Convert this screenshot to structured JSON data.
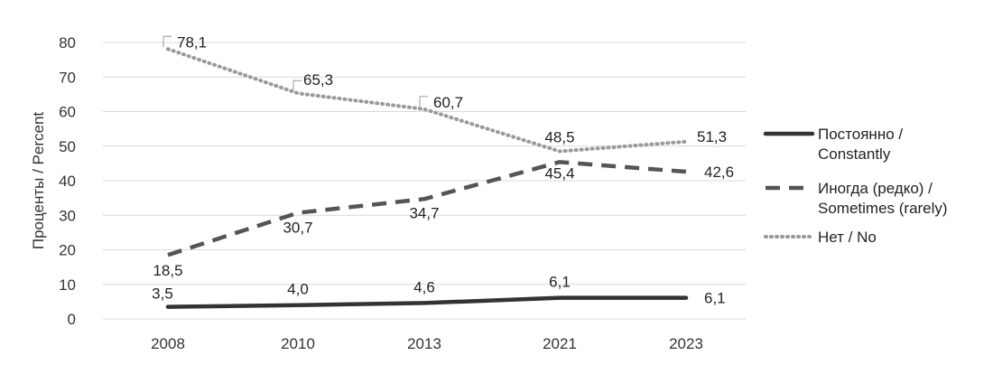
{
  "chart_data": {
    "type": "line",
    "ylabel": "Проценты / Percent",
    "ylim": [
      0,
      80
    ],
    "yticks": [
      "0",
      "10",
      "20",
      "30",
      "40",
      "50",
      "60",
      "70",
      "80"
    ],
    "categories": [
      "2008",
      "2010",
      "2013",
      "2021",
      "2023"
    ],
    "grid": true,
    "legend_position": "right",
    "series": [
      {
        "name_line1": "Постоянно /",
        "name_line2": "Constantly",
        "style": "solid",
        "color": "#333333",
        "values": [
          3.5,
          4.0,
          4.6,
          6.1,
          6.1
        ],
        "labels": [
          "3,5",
          "4,0",
          "4,6",
          "6,1",
          "6,1"
        ]
      },
      {
        "name_line1": "Иногда (редко) /",
        "name_line2": "Sometimes (rarely)",
        "style": "dashed",
        "color": "#555555",
        "values": [
          18.5,
          30.7,
          34.7,
          45.4,
          42.6
        ],
        "labels": [
          "18,5",
          "30,7",
          "34,7",
          "45,4",
          "42,6"
        ]
      },
      {
        "name_line1": "Нет / No",
        "name_line2": "",
        "style": "dotted",
        "color": "#999999",
        "values": [
          78.1,
          65.3,
          60.7,
          48.5,
          51.3
        ],
        "labels": [
          "78,1",
          "65,3",
          "60,7",
          "48,5",
          "51,3"
        ]
      }
    ]
  }
}
